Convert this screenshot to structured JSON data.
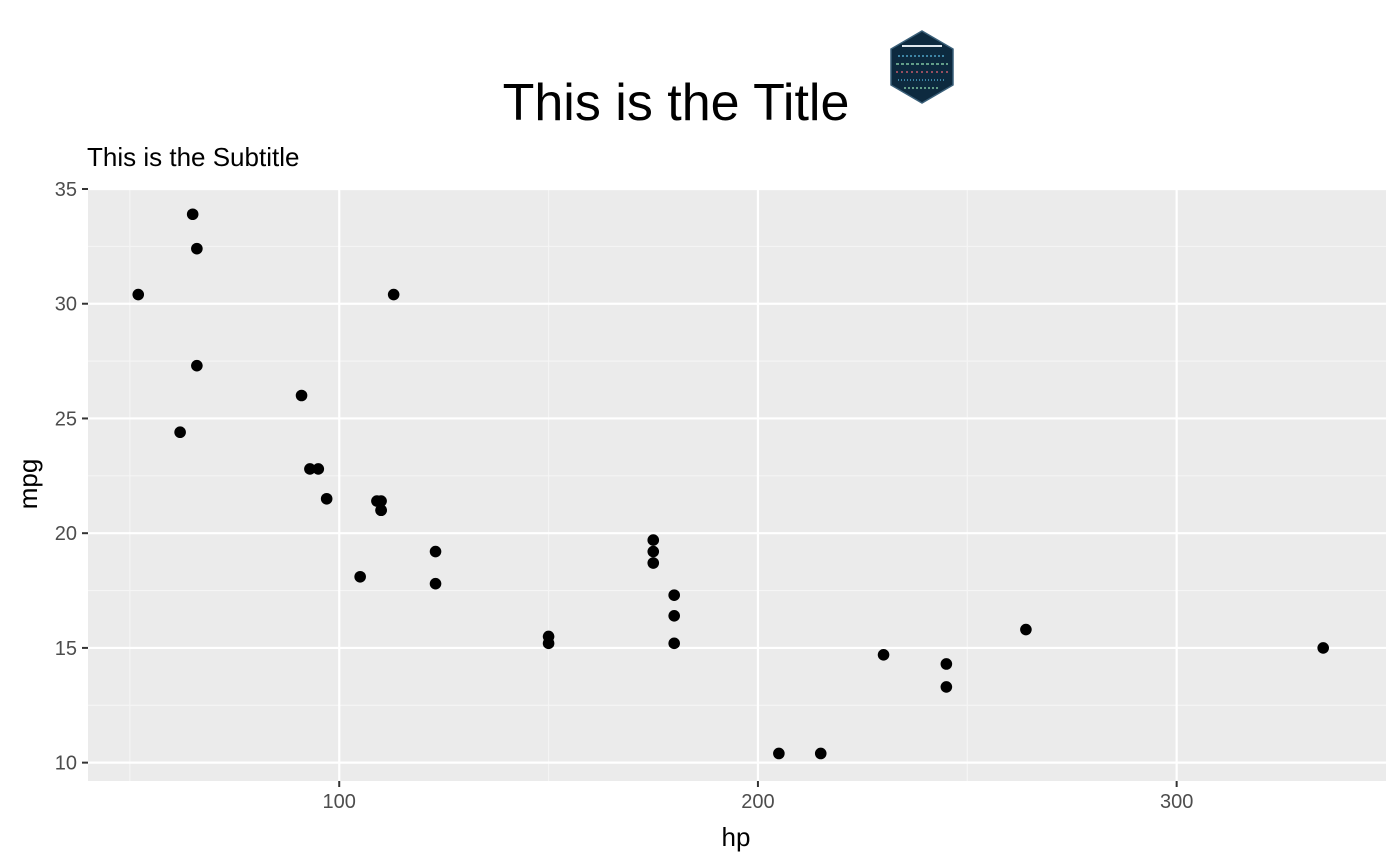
{
  "colors": {
    "panel_background": "#ebebeb",
    "grid_major": "#ffffff",
    "grid_minor": "#f5f5f5",
    "point": "#000000",
    "tick": "#333333",
    "tick_label": "#4d4d4d",
    "logo_fill": "#0d2a3f"
  },
  "logo": {
    "icon": "hex-sticker-logo-icon"
  },
  "chart_data": {
    "type": "scatter",
    "title": "This is the Title",
    "subtitle": "This is the Subtitle",
    "xlabel": "hp",
    "ylabel": "mpg",
    "xlim": [
      40,
      350
    ],
    "ylim": [
      9.2,
      35.0
    ],
    "x_ticks": [
      100,
      200,
      300
    ],
    "x_tick_labels": [
      "100",
      "200",
      "300"
    ],
    "x_minor_ticks": [
      50,
      150,
      250
    ],
    "y_ticks": [
      10,
      15,
      20,
      25,
      30,
      35
    ],
    "y_tick_labels": [
      "10",
      "15",
      "20",
      "25",
      "30",
      "35"
    ],
    "y_minor_ticks": [
      12.5,
      17.5,
      22.5,
      27.5,
      32.5
    ],
    "grid": true,
    "legend": "none",
    "points": [
      {
        "x": 110,
        "y": 21.0
      },
      {
        "x": 110,
        "y": 21.0
      },
      {
        "x": 93,
        "y": 22.8
      },
      {
        "x": 110,
        "y": 21.4
      },
      {
        "x": 175,
        "y": 18.7
      },
      {
        "x": 105,
        "y": 18.1
      },
      {
        "x": 245,
        "y": 14.3
      },
      {
        "x": 62,
        "y": 24.4
      },
      {
        "x": 95,
        "y": 22.8
      },
      {
        "x": 123,
        "y": 19.2
      },
      {
        "x": 123,
        "y": 17.8
      },
      {
        "x": 180,
        "y": 16.4
      },
      {
        "x": 180,
        "y": 17.3
      },
      {
        "x": 180,
        "y": 15.2
      },
      {
        "x": 205,
        "y": 10.4
      },
      {
        "x": 215,
        "y": 10.4
      },
      {
        "x": 230,
        "y": 14.7
      },
      {
        "x": 66,
        "y": 32.4
      },
      {
        "x": 52,
        "y": 30.4
      },
      {
        "x": 65,
        "y": 33.9
      },
      {
        "x": 97,
        "y": 21.5
      },
      {
        "x": 150,
        "y": 15.5
      },
      {
        "x": 150,
        "y": 15.2
      },
      {
        "x": 245,
        "y": 13.3
      },
      {
        "x": 175,
        "y": 19.2
      },
      {
        "x": 66,
        "y": 27.3
      },
      {
        "x": 91,
        "y": 26.0
      },
      {
        "x": 113,
        "y": 30.4
      },
      {
        "x": 264,
        "y": 15.8
      },
      {
        "x": 175,
        "y": 19.7
      },
      {
        "x": 335,
        "y": 15.0
      },
      {
        "x": 109,
        "y": 21.4
      }
    ]
  }
}
